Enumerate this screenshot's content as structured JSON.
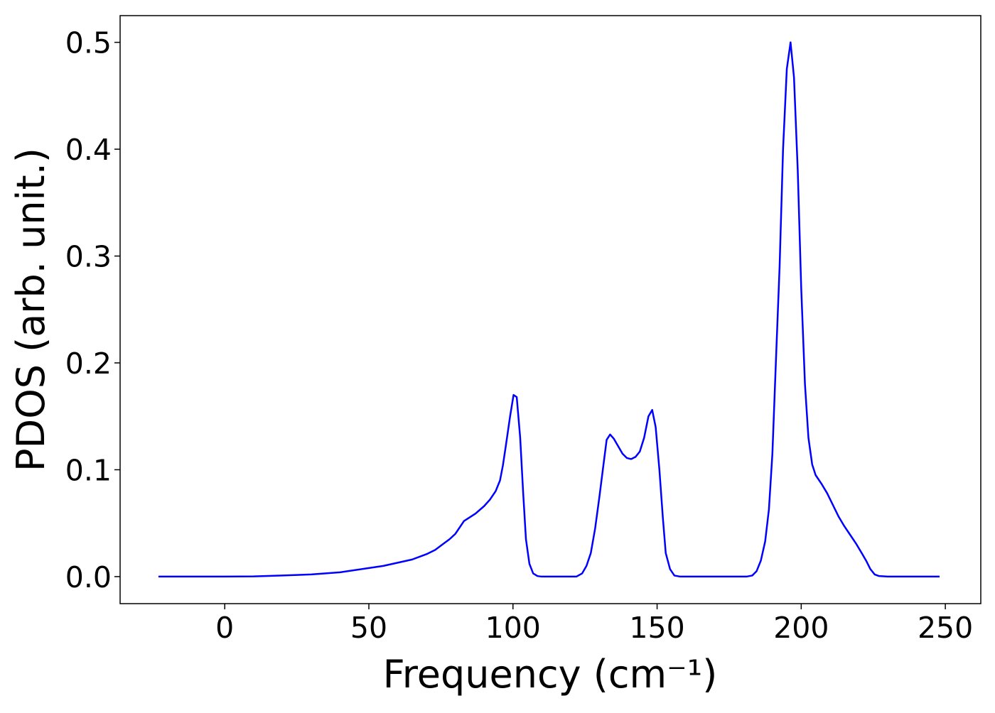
{
  "chart_data": {
    "type": "line",
    "xlabel": "Frequency (cm⁻¹)",
    "ylabel": "PDOS (arb. unit.)",
    "xlim": [
      -36.3,
      262.3
    ],
    "ylim": [
      -0.0253,
      0.525
    ],
    "xticks": [
      0,
      50,
      100,
      150,
      200,
      250
    ],
    "yticks": [
      {
        "value": 0,
        "label": "0.0"
      },
      0.1,
      0.2,
      0.3,
      0.4,
      0.5
    ],
    "series": [
      {
        "color": "#0000ff",
        "x": [
          -23,
          0,
          10,
          20,
          30,
          40,
          45,
          50,
          55,
          60,
          65,
          70,
          73,
          76,
          78,
          80,
          83,
          87,
          90,
          92,
          94,
          95.5,
          96.5,
          97.5,
          99,
          100.2,
          101.3,
          102.5,
          103.5,
          104.5,
          105.7,
          107,
          108.5,
          110,
          122,
          124,
          125.5,
          127,
          128.5,
          130,
          131.5,
          132.5,
          133.7,
          135,
          136.5,
          138,
          139.5,
          141,
          142.5,
          144,
          145.5,
          147,
          148.3,
          149.5,
          150.8,
          152,
          153,
          154.5,
          156,
          158,
          181,
          183,
          184.5,
          186,
          187.5,
          188.8,
          190,
          191.2,
          192.5,
          193.7,
          195,
          196.3,
          197.5,
          198.8,
          200,
          201.3,
          202.5,
          203.8,
          205,
          207,
          209,
          211,
          213,
          215,
          217,
          219,
          221,
          222.5,
          224,
          225.5,
          227,
          230,
          248
        ],
        "values": [
          0,
          0,
          0.0002,
          0.001,
          0.002,
          0.004,
          0.006,
          0.008,
          0.01,
          0.013,
          0.016,
          0.021,
          0.025,
          0.031,
          0.035,
          0.04,
          0.052,
          0.059,
          0.066,
          0.072,
          0.08,
          0.09,
          0.104,
          0.122,
          0.15,
          0.17,
          0.168,
          0.13,
          0.08,
          0.035,
          0.012,
          0.003,
          0.0005,
          0,
          0,
          0.003,
          0.01,
          0.022,
          0.045,
          0.075,
          0.107,
          0.128,
          0.133,
          0.129,
          0.122,
          0.115,
          0.111,
          0.11,
          0.112,
          0.117,
          0.13,
          0.15,
          0.156,
          0.14,
          0.1,
          0.055,
          0.022,
          0.007,
          0.001,
          0,
          0,
          0.001,
          0.005,
          0.015,
          0.033,
          0.063,
          0.115,
          0.2,
          0.29,
          0.4,
          0.475,
          0.5,
          0.467,
          0.38,
          0.27,
          0.18,
          0.13,
          0.105,
          0.095,
          0.087,
          0.078,
          0.067,
          0.056,
          0.047,
          0.039,
          0.031,
          0.022,
          0.015,
          0.007,
          0.002,
          0.0005,
          0,
          0
        ]
      }
    ]
  }
}
